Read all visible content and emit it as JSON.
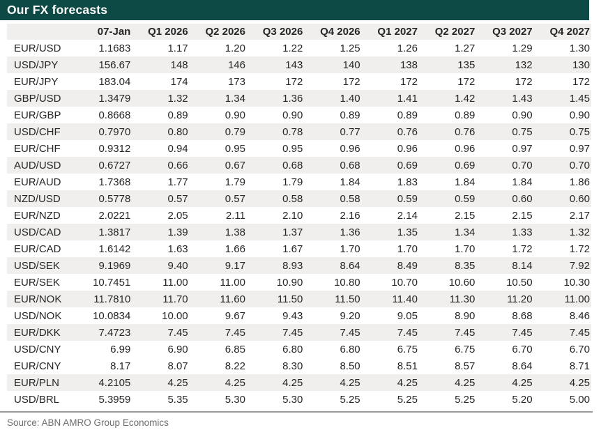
{
  "title": "Our FX forecasts",
  "source": "Source: ABN AMRO Group Economics",
  "colors": {
    "header_bar_bg": "#0d4a45",
    "header_bar_text": "#ffffff",
    "shaded_row_bg": "#f0efed",
    "body_text": "#262626",
    "source_text": "#6e6e6e",
    "rule": "#999999"
  },
  "chart_data": {
    "type": "table",
    "title": "Our FX forecasts",
    "columns": [
      "",
      "07-Jan",
      "Q1 2026",
      "Q2 2026",
      "Q3 2026",
      "Q4 2026",
      "Q1 2027",
      "Q2 2027",
      "Q3 2027",
      "Q4 2027"
    ],
    "rows": [
      {
        "pair": "EUR/USD",
        "shaded": false,
        "values": [
          "1.1683",
          "1.17",
          "1.20",
          "1.22",
          "1.25",
          "1.26",
          "1.27",
          "1.29",
          "1.30"
        ]
      },
      {
        "pair": "USD/JPY",
        "shaded": true,
        "values": [
          "156.67",
          "148",
          "146",
          "143",
          "140",
          "138",
          "135",
          "132",
          "130"
        ]
      },
      {
        "pair": "EUR/JPY",
        "shaded": false,
        "values": [
          "183.04",
          "174",
          "173",
          "172",
          "172",
          "172",
          "172",
          "172",
          "172"
        ]
      },
      {
        "pair": "GBP/USD",
        "shaded": true,
        "values": [
          "1.3479",
          "1.32",
          "1.34",
          "1.36",
          "1.40",
          "1.41",
          "1.42",
          "1.43",
          "1.45"
        ]
      },
      {
        "pair": "EUR/GBP",
        "shaded": false,
        "values": [
          "0.8668",
          "0.89",
          "0.90",
          "0.90",
          "0.89",
          "0.89",
          "0.89",
          "0.90",
          "0.90"
        ]
      },
      {
        "pair": "USD/CHF",
        "shaded": true,
        "values": [
          "0.7970",
          "0.80",
          "0.79",
          "0.78",
          "0.77",
          "0.76",
          "0.76",
          "0.75",
          "0.75"
        ]
      },
      {
        "pair": "EUR/CHF",
        "shaded": false,
        "values": [
          "0.9312",
          "0.94",
          "0.95",
          "0.95",
          "0.96",
          "0.96",
          "0.96",
          "0.97",
          "0.97"
        ]
      },
      {
        "pair": "AUD/USD",
        "shaded": true,
        "values": [
          "0.6727",
          "0.66",
          "0.67",
          "0.68",
          "0.68",
          "0.69",
          "0.69",
          "0.70",
          "0.70"
        ]
      },
      {
        "pair": "EUR/AUD",
        "shaded": false,
        "values": [
          "1.7368",
          "1.77",
          "1.79",
          "1.79",
          "1.84",
          "1.83",
          "1.84",
          "1.84",
          "1.86"
        ]
      },
      {
        "pair": "NZD/USD",
        "shaded": true,
        "values": [
          "0.5778",
          "0.57",
          "0.57",
          "0.58",
          "0.58",
          "0.59",
          "0.59",
          "0.60",
          "0.60"
        ]
      },
      {
        "pair": "EUR/NZD",
        "shaded": false,
        "values": [
          "2.0221",
          "2.05",
          "2.11",
          "2.10",
          "2.16",
          "2.14",
          "2.15",
          "2.15",
          "2.17"
        ]
      },
      {
        "pair": "USD/CAD",
        "shaded": true,
        "values": [
          "1.3817",
          "1.39",
          "1.38",
          "1.37",
          "1.36",
          "1.35",
          "1.34",
          "1.33",
          "1.32"
        ]
      },
      {
        "pair": "EUR/CAD",
        "shaded": false,
        "values": [
          "1.6142",
          "1.63",
          "1.66",
          "1.67",
          "1.70",
          "1.70",
          "1.70",
          "1.72",
          "1.72"
        ]
      },
      {
        "pair": "USD/SEK",
        "shaded": true,
        "values": [
          "9.1969",
          "9.40",
          "9.17",
          "8.93",
          "8.64",
          "8.49",
          "8.35",
          "8.14",
          "7.92"
        ]
      },
      {
        "pair": "EUR/SEK",
        "shaded": false,
        "values": [
          "10.7451",
          "11.00",
          "11.00",
          "10.90",
          "10.80",
          "10.70",
          "10.60",
          "10.50",
          "10.30"
        ]
      },
      {
        "pair": "EUR/NOK",
        "shaded": true,
        "values": [
          "11.7810",
          "11.70",
          "11.60",
          "11.50",
          "11.50",
          "11.40",
          "11.30",
          "11.20",
          "11.00"
        ]
      },
      {
        "pair": "USD/NOK",
        "shaded": false,
        "values": [
          "10.0834",
          "10.00",
          "9.67",
          "9.43",
          "9.20",
          "9.05",
          "8.90",
          "8.68",
          "8.46"
        ]
      },
      {
        "pair": "EUR/DKK",
        "shaded": true,
        "values": [
          "7.4723",
          "7.45",
          "7.45",
          "7.45",
          "7.45",
          "7.45",
          "7.45",
          "7.45",
          "7.45"
        ]
      },
      {
        "pair": "USD/CNY",
        "shaded": false,
        "values": [
          "6.99",
          "6.90",
          "6.85",
          "6.80",
          "6.80",
          "6.75",
          "6.75",
          "6.70",
          "6.70"
        ]
      },
      {
        "pair": "EUR/CNY",
        "shaded": false,
        "values": [
          "8.17",
          "8.07",
          "8.22",
          "8.30",
          "8.50",
          "8.51",
          "8.57",
          "8.64",
          "8.71"
        ]
      },
      {
        "pair": "EUR/PLN",
        "shaded": true,
        "values": [
          "4.2105",
          "4.25",
          "4.25",
          "4.25",
          "4.25",
          "4.25",
          "4.25",
          "4.25",
          "4.25"
        ]
      },
      {
        "pair": "USD/BRL",
        "shaded": false,
        "values": [
          "5.3959",
          "5.35",
          "5.30",
          "5.30",
          "5.25",
          "5.25",
          "5.25",
          "5.20",
          "5.00"
        ]
      }
    ],
    "source": "Source: ABN AMRO Group Economics"
  }
}
